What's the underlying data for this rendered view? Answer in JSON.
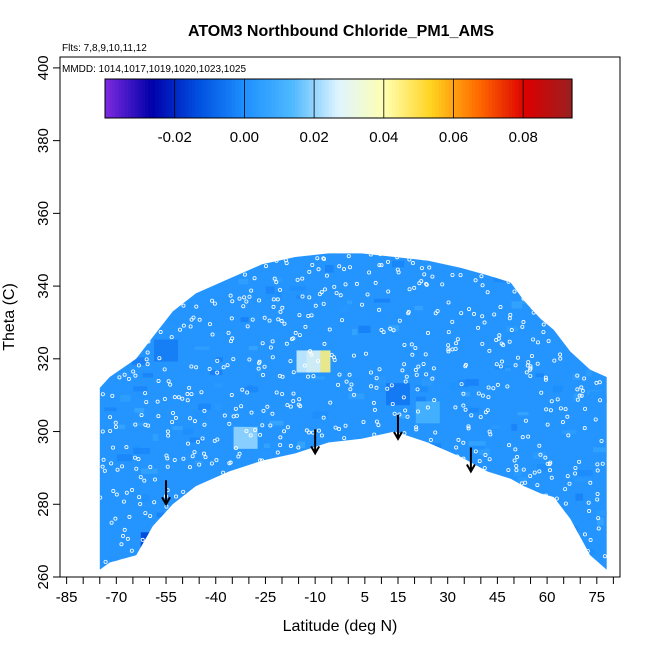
{
  "chart_data": {
    "type": "heatmap",
    "title": "ATOM3 Northbound Chloride_PM1_AMS",
    "annotations": [
      "Flts: 7,8,9,10,11,12",
      "MMDD: 1014,1017,1019,1020,1023,1025"
    ],
    "xlabel": "Latitude (deg N)",
    "ylabel": "Theta (C)",
    "xlim": [
      -87,
      82
    ],
    "ylim": [
      260,
      403
    ],
    "x_ticks": [
      "-85",
      "-70",
      "-55",
      "-40",
      "-25",
      "-10",
      "5",
      "15",
      "30",
      "45",
      "60",
      "75"
    ],
    "y_ticks": [
      "260",
      "280",
      "300",
      "320",
      "340",
      "360",
      "380",
      "400"
    ],
    "colorbar": {
      "range": [
        -0.04,
        0.094
      ],
      "ticks": [
        "-0.02",
        "0.00",
        "0.02",
        "0.04",
        "0.06",
        "0.08"
      ],
      "colors": [
        "#7f2be0",
        "#0000aa",
        "#0050e0",
        "#1e90ff",
        "#4db8ff",
        "#dff4ff",
        "#ffffb0",
        "#ffd21e",
        "#ff6a00",
        "#dc0000",
        "#992020"
      ]
    },
    "background_value": 0.002,
    "data_envelope": {
      "lat": [
        -75,
        -72,
        -64,
        -59,
        -53,
        -46,
        -36,
        -26,
        -16,
        -6,
        4,
        14,
        24,
        34,
        42,
        49,
        53,
        58,
        62,
        67,
        73,
        78
      ],
      "theta_min": [
        262,
        264,
        266,
        274,
        280,
        285,
        289,
        292,
        294,
        297,
        298,
        300,
        297,
        293,
        289,
        287,
        285,
        283,
        282,
        276,
        266,
        262
      ],
      "theta_max": [
        312,
        315,
        320,
        326,
        333,
        338,
        342,
        346,
        348,
        349,
        349,
        348,
        347,
        345,
        343,
        341,
        336,
        331,
        328,
        322,
        317,
        315
      ]
    },
    "highlights": [
      {
        "lat": -9,
        "theta": 319,
        "value": 0.045
      },
      {
        "lat": -12,
        "theta": 319,
        "value": 0.025
      },
      {
        "lat": -31,
        "theta": 298,
        "value": 0.02
      },
      {
        "lat": -59,
        "theta": 269,
        "value": -0.015
      },
      {
        "lat": -55,
        "theta": 322,
        "value": -0.004
      },
      {
        "lat": 24,
        "theta": 305,
        "value": 0.012
      },
      {
        "lat": 15,
        "theta": 310,
        "value": -0.005
      }
    ],
    "arrows": [
      {
        "lat": -55,
        "theta": 280
      },
      {
        "lat": -10,
        "theta": 294
      },
      {
        "lat": 15,
        "theta": 298
      },
      {
        "lat": 37,
        "theta": 289
      }
    ]
  }
}
